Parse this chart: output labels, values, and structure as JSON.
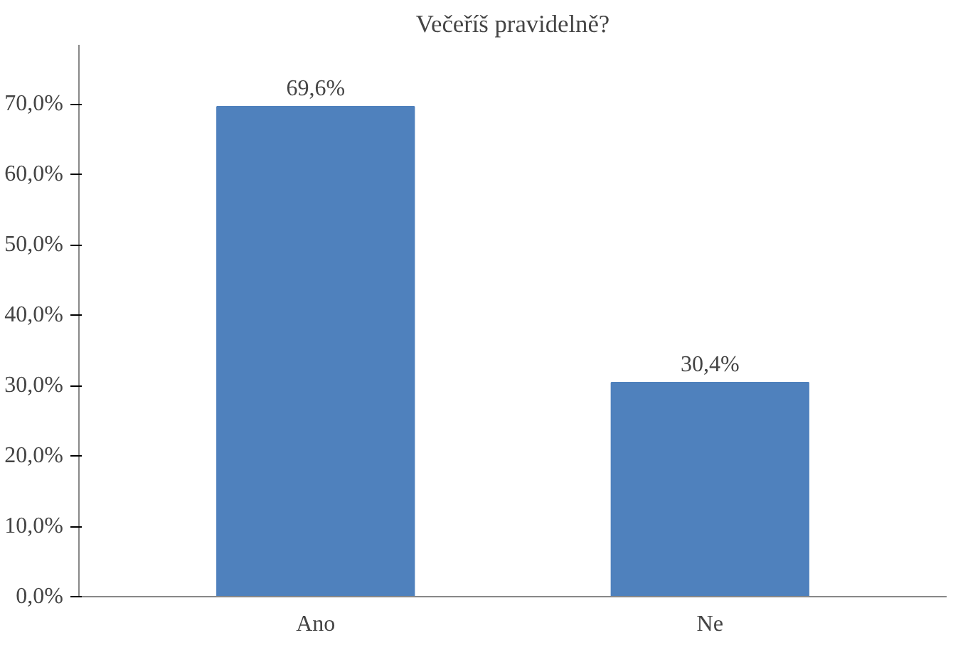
{
  "chart_data": {
    "type": "bar",
    "title": "Večeříš pravidelně?",
    "categories": [
      "Ano",
      "Ne"
    ],
    "values": [
      69.6,
      30.4
    ],
    "value_labels": [
      "69,6%",
      "30,4%"
    ],
    "color": "#4f81bd",
    "ylim": [
      0,
      70
    ],
    "yticks": [
      {
        "value": 0,
        "label": "0,0%"
      },
      {
        "value": 10,
        "label": "10,0%"
      },
      {
        "value": 20,
        "label": "20,0%"
      },
      {
        "value": 30,
        "label": "30,0%"
      },
      {
        "value": 40,
        "label": "40,0%"
      },
      {
        "value": 50,
        "label": "50,0%"
      },
      {
        "value": 60,
        "label": "60,0%"
      },
      {
        "value": 70,
        "label": "70,0%"
      }
    ],
    "grid": false
  }
}
